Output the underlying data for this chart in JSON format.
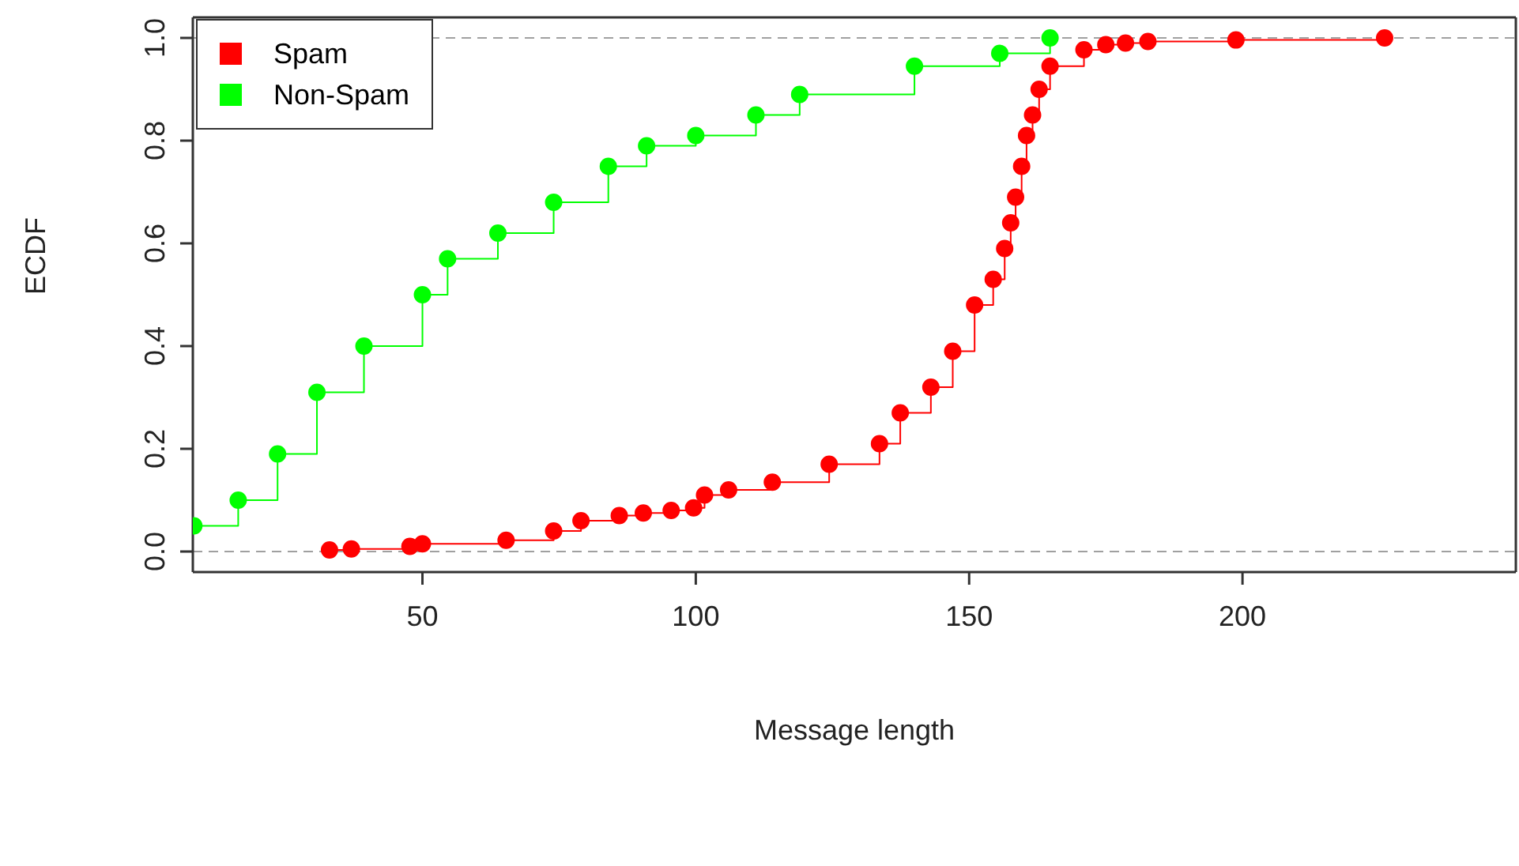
{
  "chart_data": {
    "type": "step",
    "xlabel": "Message length",
    "ylabel": "ECDF",
    "xlim": [
      8,
      250
    ],
    "xticks": [
      50,
      100,
      150,
      200
    ],
    "ylim": [
      -0.04,
      1.04
    ],
    "yticks": [
      {
        "value": 0,
        "label": "0.0"
      },
      0.2,
      0.4,
      0.6,
      0.8,
      {
        "value": 1,
        "label": "1.0"
      }
    ],
    "legend": "top left",
    "marker": "circle",
    "ref_lines": [
      {
        "axis": "y",
        "value": 0,
        "color": "#a0a0a0",
        "line_style": "dashed"
      },
      {
        "axis": "y",
        "value": 1,
        "color": "#a0a0a0",
        "line_style": "dashed"
      }
    ],
    "series": [
      {
        "name": "Spam",
        "color": "#ff0000",
        "x": [
          33,
          37,
          47.7,
          50,
          65.3,
          74,
          79,
          86,
          90.4,
          95.5,
          99.6,
          101.6,
          106,
          114,
          124.4,
          133.6,
          137.4,
          143,
          147,
          151,
          154.4,
          156.5,
          157.6,
          158.5,
          159.6,
          160.5,
          161.6,
          162.8,
          164.8,
          171,
          175,
          178.6,
          182.7,
          198.8,
          226
        ],
        "values": [
          0.003,
          0.005,
          0.01,
          0.015,
          0.022,
          0.04,
          0.06,
          0.07,
          0.075,
          0.08,
          0.085,
          0.11,
          0.12,
          0.135,
          0.17,
          0.21,
          0.27,
          0.32,
          0.39,
          0.48,
          0.53,
          0.59,
          0.64,
          0.69,
          0.75,
          0.81,
          0.85,
          0.9,
          0.945,
          0.977,
          0.987,
          0.99,
          0.993,
          0.996,
          1.0
        ]
      },
      {
        "name": "Non-Spam",
        "color": "#00ff00",
        "x": [
          8.2,
          16.3,
          23.5,
          30.7,
          39.3,
          50,
          54.6,
          63.8,
          74,
          84,
          91,
          100,
          111,
          119,
          140,
          155.6,
          164.8
        ],
        "values": [
          0.05,
          0.1,
          0.19,
          0.31,
          0.4,
          0.5,
          0.57,
          0.62,
          0.68,
          0.75,
          0.79,
          0.81,
          0.85,
          0.89,
          0.945,
          0.97,
          1.0
        ]
      }
    ]
  }
}
